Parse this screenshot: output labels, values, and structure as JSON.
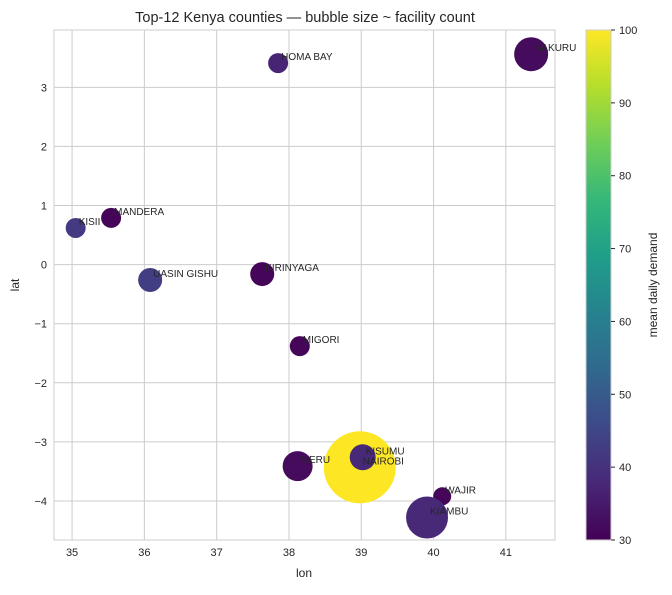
{
  "chart_data": {
    "type": "scatter",
    "title": "Top-12 Kenya counties — bubble size ~ facility count",
    "xlabel": "lon",
    "ylabel": "lat",
    "xlim": [
      34.75,
      41.68
    ],
    "ylim": [
      -4.66,
      3.97
    ],
    "xticks": [
      35,
      36,
      37,
      38,
      39,
      40,
      41
    ],
    "yticks": [
      -4,
      -3,
      -2,
      -1,
      0,
      1,
      2,
      3
    ],
    "grid": true,
    "colormap": "viridis",
    "colorbar": {
      "label": "mean daily demand",
      "range": [
        30,
        100
      ],
      "ticks": [
        30,
        40,
        50,
        60,
        70,
        80,
        90,
        100
      ]
    },
    "points": [
      {
        "name": "NAIROBI",
        "lon": 38.98,
        "lat": -3.43,
        "demand": 100,
        "size": 1296
      },
      {
        "name": "NAKURU",
        "lon": 41.35,
        "lat": 3.56,
        "demand": 32,
        "size": 289
      },
      {
        "name": "HOMA BAY",
        "lon": 37.85,
        "lat": 3.41,
        "demand": 37,
        "size": 100
      },
      {
        "name": "MANDERA",
        "lon": 35.54,
        "lat": 0.79,
        "demand": 31,
        "size": 100
      },
      {
        "name": "KISII",
        "lon": 35.05,
        "lat": 0.62,
        "demand": 42,
        "size": 100
      },
      {
        "name": "UASIN GISHU",
        "lon": 36.08,
        "lat": -0.26,
        "demand": 43,
        "size": 144
      },
      {
        "name": "KIRINYAGA",
        "lon": 37.63,
        "lat": -0.16,
        "demand": 31,
        "size": 144
      },
      {
        "name": "MIGORI",
        "lon": 38.15,
        "lat": -1.38,
        "demand": 31,
        "size": 100
      },
      {
        "name": "MERU",
        "lon": 38.12,
        "lat": -3.41,
        "demand": 32,
        "size": 225
      },
      {
        "name": "KISUMU",
        "lon": 39.02,
        "lat": -3.26,
        "demand": 38,
        "size": 169
      },
      {
        "name": "WAJIR",
        "lon": 40.12,
        "lat": -3.92,
        "demand": 31,
        "size": 81
      },
      {
        "name": "KIAMBU",
        "lon": 39.91,
        "lat": -4.28,
        "demand": 38,
        "size": 441
      }
    ]
  }
}
